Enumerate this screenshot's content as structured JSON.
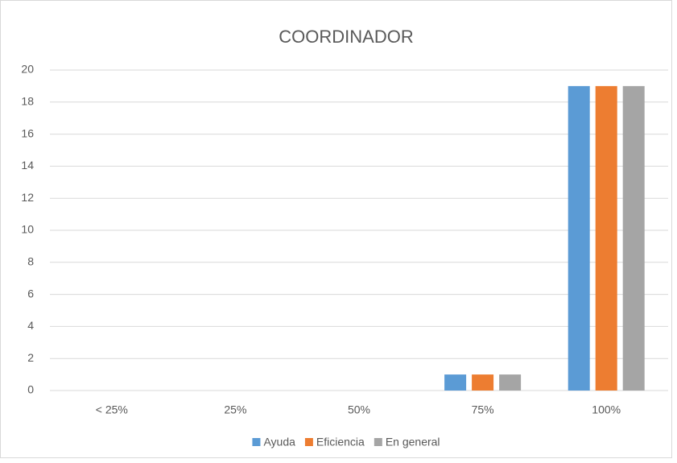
{
  "chart_data": {
    "type": "bar",
    "title": "COORDINADOR",
    "categories": [
      "< 25%",
      "25%",
      "50%",
      "75%",
      "100%"
    ],
    "series": [
      {
        "name": "Ayuda",
        "color": "#5b9bd5",
        "values": [
          0,
          0,
          0,
          1,
          19
        ]
      },
      {
        "name": "Eficiencia",
        "color": "#ed7d31",
        "values": [
          0,
          0,
          0,
          1,
          19
        ]
      },
      {
        "name": "En general",
        "color": "#a5a5a5",
        "values": [
          0,
          0,
          0,
          1,
          19
        ]
      }
    ],
    "ylim": [
      0,
      20
    ],
    "yticks": [
      0,
      2,
      4,
      6,
      8,
      10,
      12,
      14,
      16,
      18,
      20
    ],
    "grid": true,
    "legend": "bottom"
  }
}
